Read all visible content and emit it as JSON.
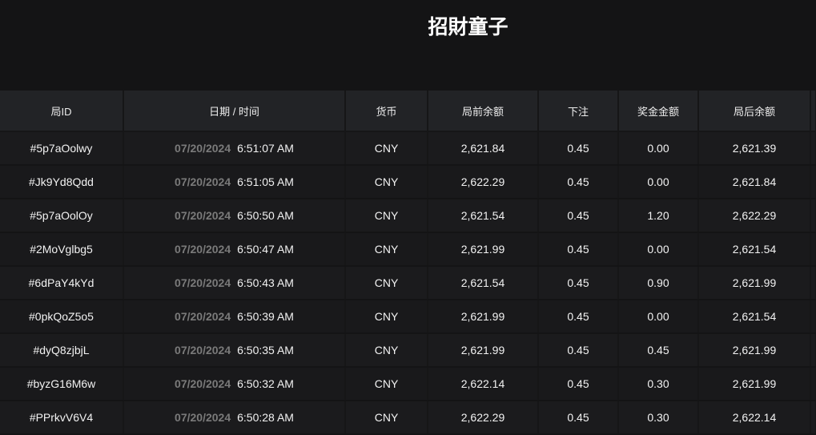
{
  "header": {
    "title": "招財童子"
  },
  "table": {
    "columns": [
      "局ID",
      "日期 / 时间",
      "货币",
      "局前余额",
      "下注",
      "奖金金额",
      "局后余额"
    ],
    "rows": [
      {
        "id": "#5p7aOolwy",
        "date": "07/20/2024",
        "time": "6:51:07 AM",
        "currency": "CNY",
        "before": "2,621.84",
        "bet": "0.45",
        "win": "0.00",
        "after": "2,621.39"
      },
      {
        "id": "#Jk9Yd8Qdd",
        "date": "07/20/2024",
        "time": "6:51:05 AM",
        "currency": "CNY",
        "before": "2,622.29",
        "bet": "0.45",
        "win": "0.00",
        "after": "2,621.84"
      },
      {
        "id": "#5p7aOolOy",
        "date": "07/20/2024",
        "time": "6:50:50 AM",
        "currency": "CNY",
        "before": "2,621.54",
        "bet": "0.45",
        "win": "1.20",
        "after": "2,622.29"
      },
      {
        "id": "#2MoVglbg5",
        "date": "07/20/2024",
        "time": "6:50:47 AM",
        "currency": "CNY",
        "before": "2,621.99",
        "bet": "0.45",
        "win": "0.00",
        "after": "2,621.54"
      },
      {
        "id": "#6dPaY4kYd",
        "date": "07/20/2024",
        "time": "6:50:43 AM",
        "currency": "CNY",
        "before": "2,621.54",
        "bet": "0.45",
        "win": "0.90",
        "after": "2,621.99"
      },
      {
        "id": "#0pkQoZ5o5",
        "date": "07/20/2024",
        "time": "6:50:39 AM",
        "currency": "CNY",
        "before": "2,621.99",
        "bet": "0.45",
        "win": "0.00",
        "after": "2,621.54"
      },
      {
        "id": "#dyQ8zjbjL",
        "date": "07/20/2024",
        "time": "6:50:35 AM",
        "currency": "CNY",
        "before": "2,621.99",
        "bet": "0.45",
        "win": "0.45",
        "after": "2,621.99"
      },
      {
        "id": "#byzG16M6w",
        "date": "07/20/2024",
        "time": "6:50:32 AM",
        "currency": "CNY",
        "before": "2,622.14",
        "bet": "0.45",
        "win": "0.30",
        "after": "2,621.99"
      },
      {
        "id": "#PPrkvV6V4",
        "date": "07/20/2024",
        "time": "6:50:28 AM",
        "currency": "CNY",
        "before": "2,622.29",
        "bet": "0.45",
        "win": "0.30",
        "after": "2,622.14"
      }
    ]
  }
}
